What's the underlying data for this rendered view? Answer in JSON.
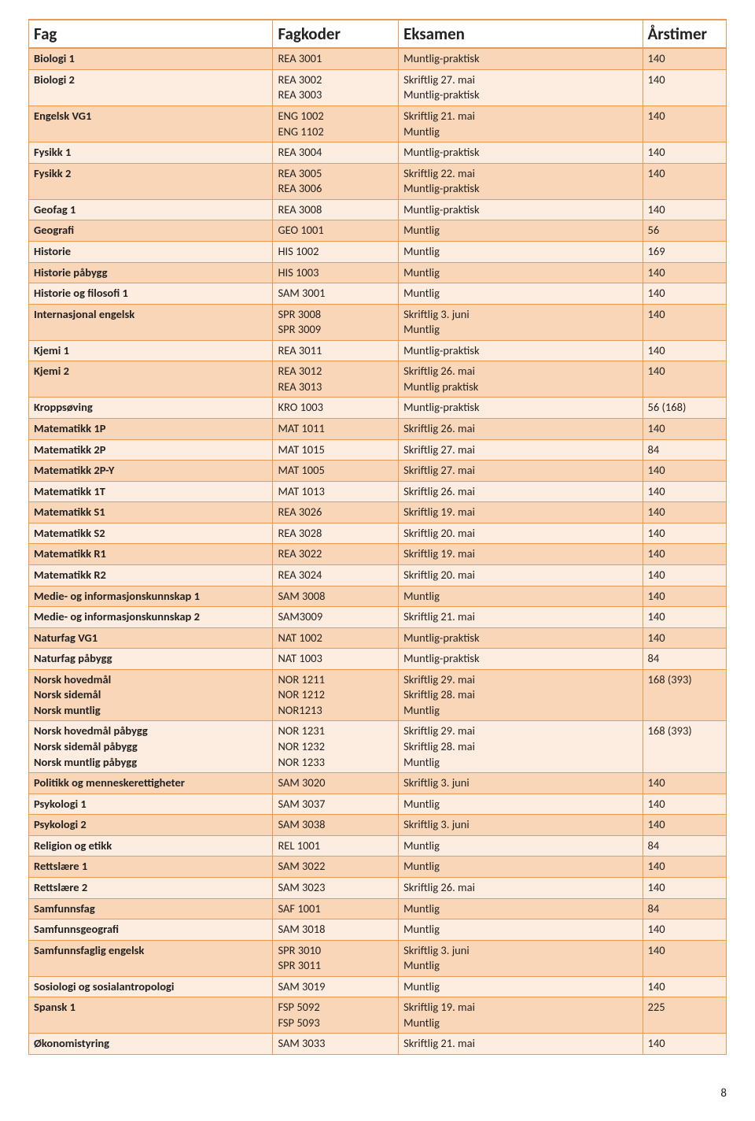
{
  "header": {
    "fag": "Fag",
    "fagkoder": "Fagkoder",
    "eksamen": "Eksamen",
    "arstimer": "Årstimer"
  },
  "stripe_colors": [
    "#f9d6b8",
    "#fdece0"
  ],
  "border_color": "#e89a54",
  "rows": [
    {
      "fag": "Biologi 1",
      "koder": "REA 3001",
      "eksamen": "Muntlig-praktisk",
      "timer": "140"
    },
    {
      "fag": "Biologi 2",
      "koder": "REA 3002\nREA 3003",
      "eksamen": "Skriftlig  27. mai\nMuntlig-praktisk",
      "timer": "140"
    },
    {
      "fag": "Engelsk VG1",
      "koder": "ENG 1002\nENG 1102",
      "eksamen": "Skriftlig  21. mai\nMuntlig",
      "timer": "140"
    },
    {
      "fag": "Fysikk 1",
      "koder": "REA 3004",
      "eksamen": "Muntlig-praktisk",
      "timer": "140"
    },
    {
      "fag": "Fysikk 2",
      "koder": "REA 3005\nREA 3006",
      "eksamen": "Skriftlig  22. mai\nMuntlig-praktisk",
      "timer": "140"
    },
    {
      "fag": "Geofag 1",
      "koder": "REA 3008",
      "eksamen": "Muntlig-praktisk",
      "timer": "140"
    },
    {
      "fag": "Geografi",
      "koder": "GEO 1001",
      "eksamen": "Muntlig",
      "timer": "56"
    },
    {
      "fag": "Historie",
      "koder": "HIS 1002",
      "eksamen": "Muntlig",
      "timer": "169"
    },
    {
      "fag": "Historie påbygg",
      "koder": "HIS 1003",
      "eksamen": "Muntlig",
      "timer": "140"
    },
    {
      "fag": "Historie og filosofi 1",
      "koder": "SAM 3001",
      "eksamen": "Muntlig",
      "timer": "140"
    },
    {
      "fag": "Internasjonal engelsk",
      "koder": "SPR 3008\nSPR 3009",
      "eksamen": "Skriftlig 3. juni\nMuntlig",
      "timer": "140"
    },
    {
      "fag": "Kjemi 1",
      "koder": "REA 3011",
      "eksamen": "Muntlig-praktisk",
      "timer": "140"
    },
    {
      "fag": "Kjemi 2",
      "koder": "REA 3012\nREA 3013",
      "eksamen": "Skriftlig 26. mai\nMuntlig praktisk",
      "timer": "140"
    },
    {
      "fag": "Kroppsøving",
      "koder": "KRO 1003",
      "eksamen": "Muntlig-praktisk",
      "timer": "56 (168)"
    },
    {
      "fag": "Matematikk 1P",
      "koder": "MAT 1011",
      "eksamen": "Skriftlig  26. mai",
      "timer": "140"
    },
    {
      "fag": "Matematikk 2P",
      "koder": "MAT 1015",
      "eksamen": "Skriftlig  27. mai",
      "timer": "84"
    },
    {
      "fag": "Matematikk 2P-Y",
      "koder": "MAT 1005",
      "eksamen": "Skriftlig  27. mai",
      "timer": "140"
    },
    {
      "fag": "Matematikk 1T",
      "koder": "MAT 1013",
      "eksamen": "Skriftlig  26. mai",
      "timer": "140"
    },
    {
      "fag": "Matematikk S1",
      "koder": "REA 3026",
      "eksamen": "Skriftlig  19. mai",
      "timer": "140"
    },
    {
      "fag": "Matematikk S2",
      "koder": "REA 3028",
      "eksamen": "Skriftlig  20. mai",
      "timer": "140"
    },
    {
      "fag": "Matematikk R1",
      "koder": "REA 3022",
      "eksamen": "Skriftlig  19. mai",
      "timer": "140"
    },
    {
      "fag": "Matematikk R2",
      "koder": "REA 3024",
      "eksamen": "Skriftlig  20. mai",
      "timer": "140"
    },
    {
      "fag": "Medie- og informasjonskunnskap 1",
      "koder": "SAM 3008",
      "eksamen": "Muntlig",
      "timer": "140"
    },
    {
      "fag": "Medie- og informasjonskunnskap 2",
      "koder": "SAM3009",
      "eksamen": "Skriftlig  21. mai",
      "timer": "140"
    },
    {
      "fag": "Naturfag VG1",
      "koder": "NAT 1002",
      "eksamen": "Muntlig-praktisk",
      "timer": "140"
    },
    {
      "fag": "Naturfag påbygg",
      "koder": "NAT 1003",
      "eksamen": "Muntlig-praktisk",
      "timer": "84"
    },
    {
      "fag": "Norsk hovedmål\nNorsk sidemål\nNorsk muntlig",
      "koder": "NOR 1211\nNOR 1212\nNOR1213",
      "eksamen": "Skriftlig  29. mai\nSkriftlig  28. mai\nMuntlig",
      "timer": "168 (393)"
    },
    {
      "fag": "Norsk hovedmål påbygg\nNorsk sidemål påbygg\nNorsk muntlig påbygg",
      "koder": "NOR 1231\nNOR 1232\nNOR 1233",
      "eksamen": "Skriftlig  29. mai\nSkriftlig  28. mai\nMuntlig",
      "timer": "168 (393)"
    },
    {
      "fag": "Politikk og menneskerettigheter",
      "koder": "SAM 3020",
      "eksamen": "Skriftlig  3. juni",
      "timer": "140"
    },
    {
      "fag": "Psykologi 1",
      "koder": "SAM 3037",
      "eksamen": "Muntlig",
      "timer": "140"
    },
    {
      "fag": "Psykologi 2",
      "koder": "SAM 3038",
      "eksamen": "Skriftlig 3. juni",
      "timer": "140"
    },
    {
      "fag": "Religion og etikk",
      "koder": "REL 1001",
      "eksamen": "Muntlig",
      "timer": "84"
    },
    {
      "fag": "Rettslære 1",
      "koder": "SAM 3022",
      "eksamen": "Muntlig",
      "timer": "140"
    },
    {
      "fag": "Rettslære 2",
      "koder": "SAM 3023",
      "eksamen": "Skriftlig  26. mai",
      "timer": "140"
    },
    {
      "fag": "Samfunnsfag",
      "koder": "SAF 1001",
      "eksamen": "Muntlig",
      "timer": "84"
    },
    {
      "fag": "Samfunnsgeografi",
      "koder": "SAM 3018",
      "eksamen": "Muntlig",
      "timer": "140"
    },
    {
      "fag": "Samfunnsfaglig engelsk",
      "koder": "SPR 3010\nSPR 3011",
      "eksamen": "Skriftlig  3. juni\nMuntlig",
      "timer": "140"
    },
    {
      "fag": "Sosiologi og sosialantropologi",
      "koder": "SAM 3019",
      "eksamen": "Muntlig",
      "timer": "140"
    },
    {
      "fag": "Spansk 1",
      "koder": "FSP 5092\nFSP 5093",
      "eksamen": "Skriftlig   19. mai\nMuntlig",
      "timer": "225"
    },
    {
      "fag": "Økonomistyring",
      "koder": "SAM 3033",
      "eksamen": "Skriftlig  21. mai",
      "timer": "140"
    }
  ],
  "page_number": "8"
}
